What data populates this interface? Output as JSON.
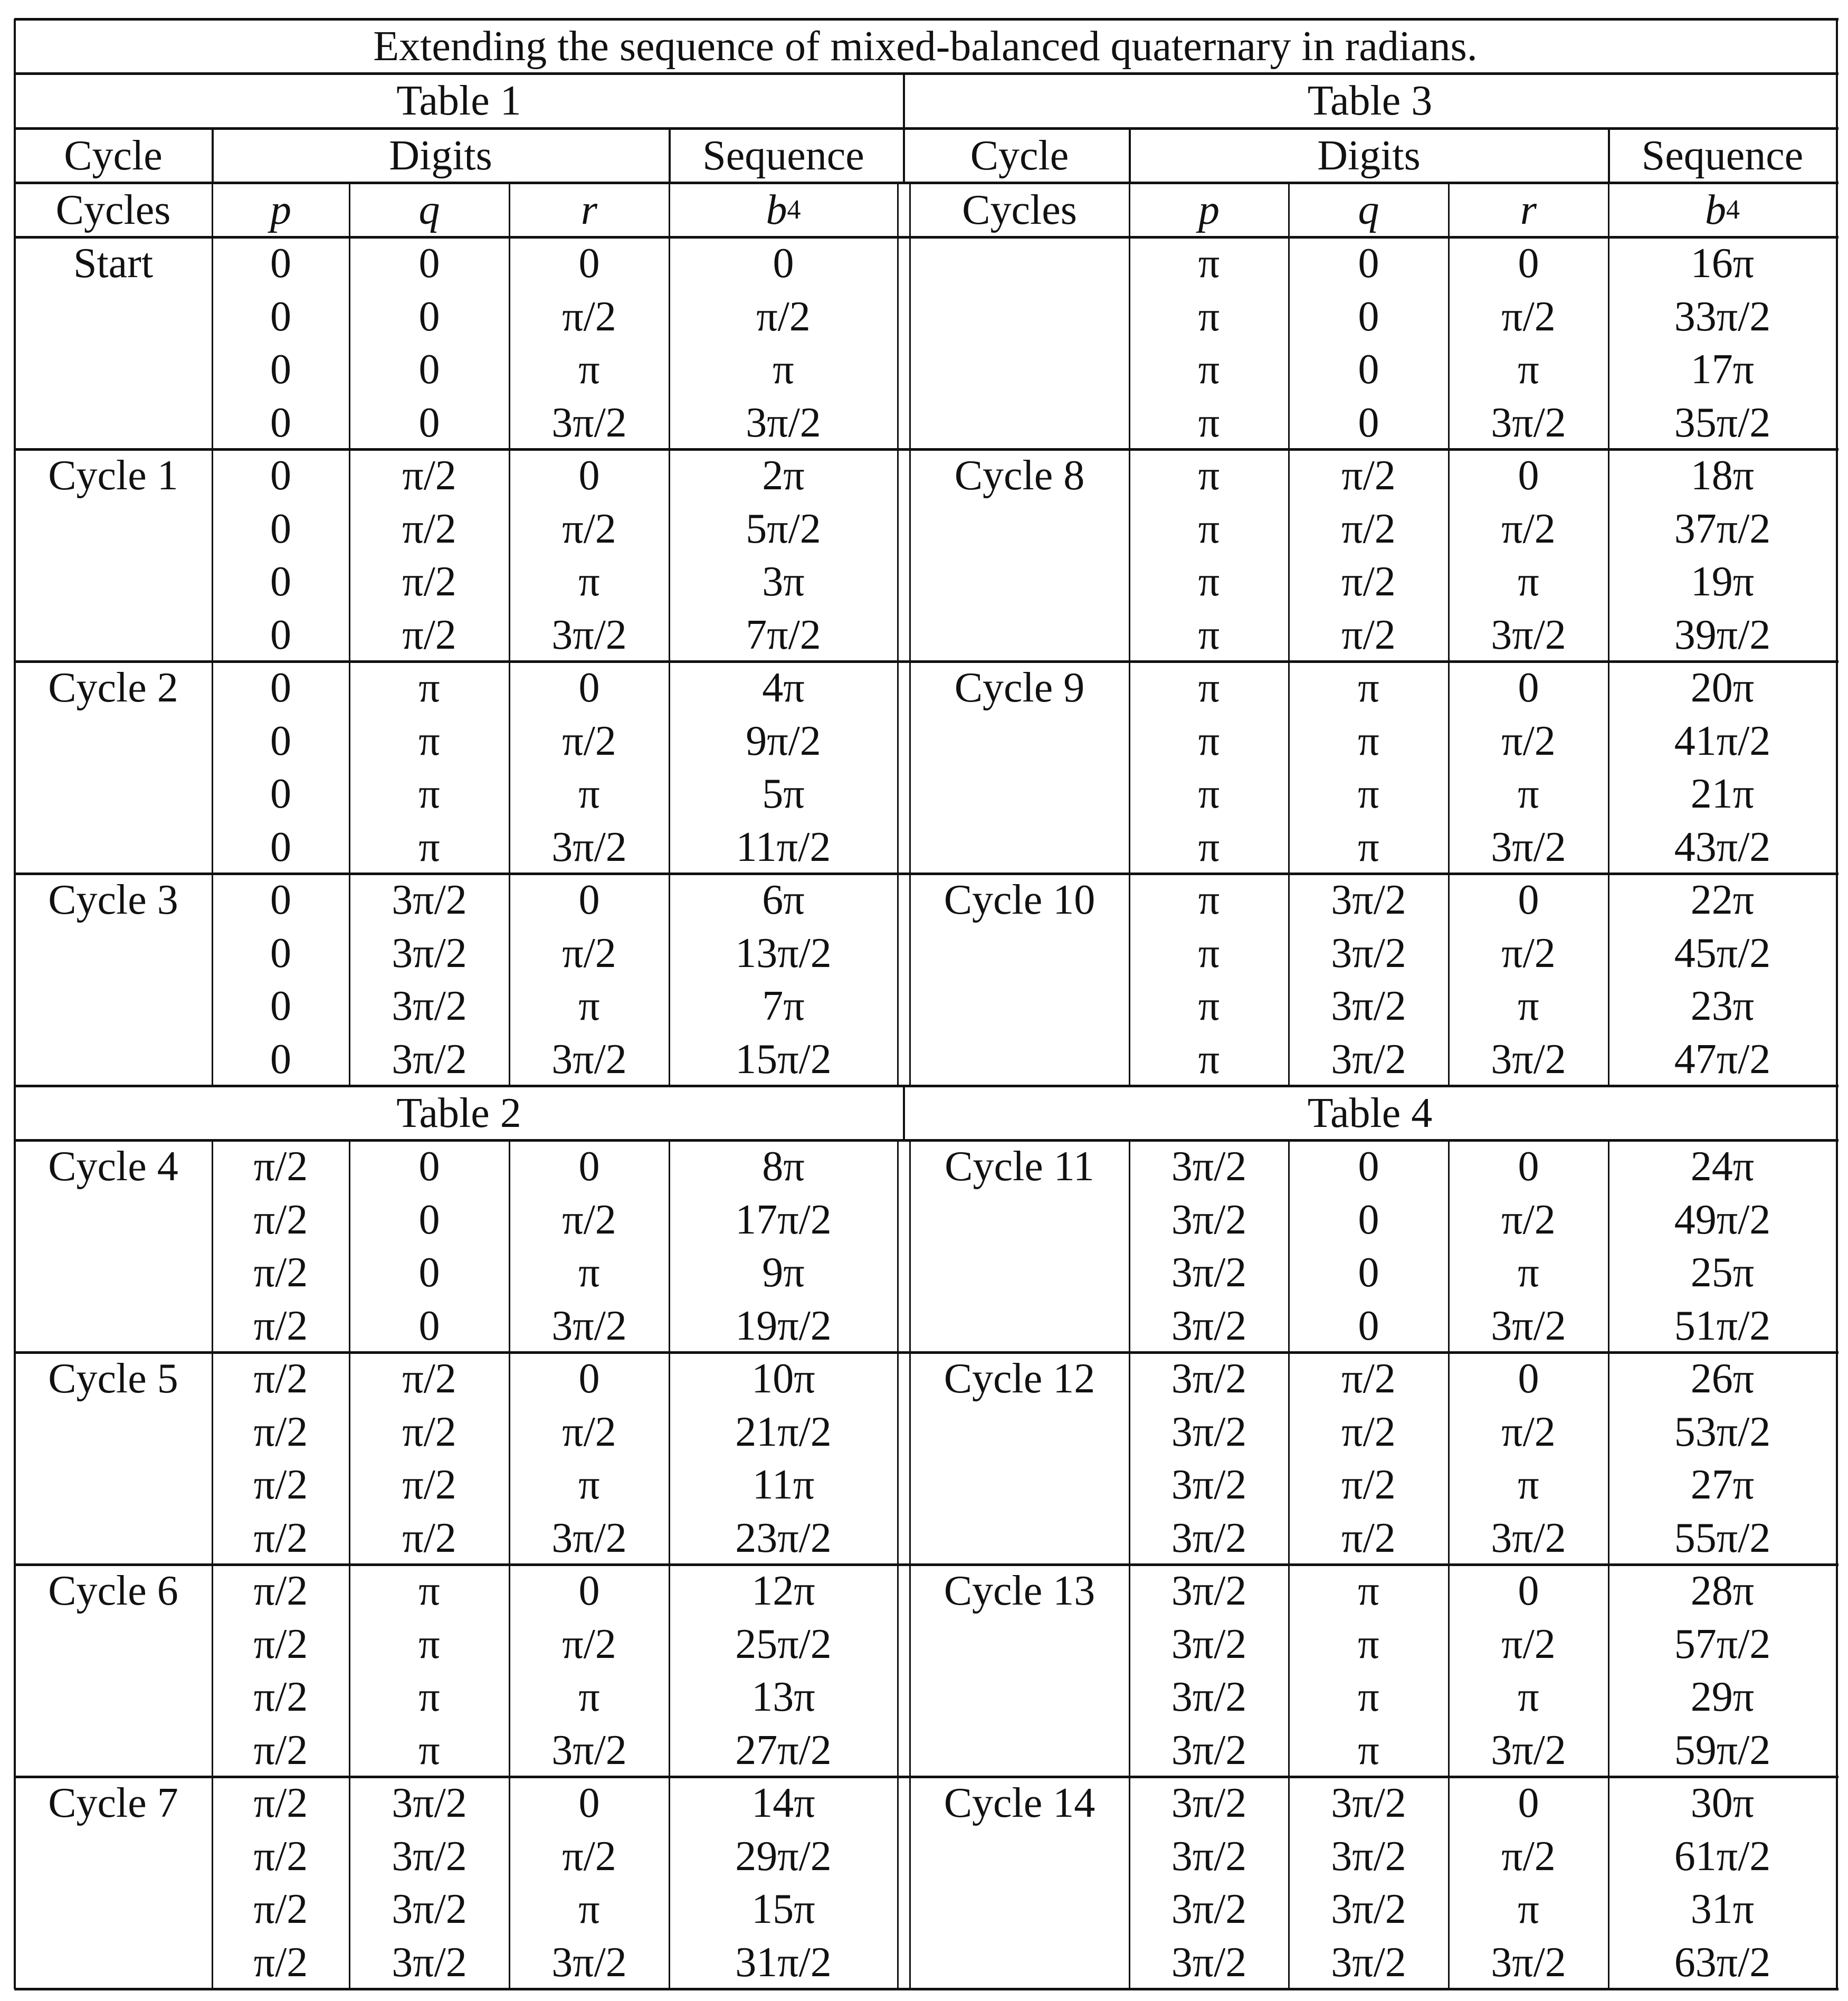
{
  "title": "Extending the sequence of mixed-balanced quaternary in radians.",
  "header_row1": {
    "cycle": "Cycle",
    "digits": "Digits",
    "sequence": "Sequence"
  },
  "header_row2": {
    "cycles": "Cycles",
    "p": "p",
    "q": "q",
    "r": "r",
    "b": "b",
    "b_sub": "4"
  },
  "left": [
    {
      "table_label": "Table 1",
      "groups": [
        {
          "label": "Start",
          "rows": [
            [
              "0",
              "0",
              "0",
              "0"
            ],
            [
              "0",
              "0",
              "π/2",
              "π/2"
            ],
            [
              "0",
              "0",
              "π",
              "π"
            ],
            [
              "0",
              "0",
              "3π/2",
              "3π/2"
            ]
          ]
        },
        {
          "label": "Cycle 1",
          "rows": [
            [
              "0",
              "π/2",
              "0",
              "2π"
            ],
            [
              "0",
              "π/2",
              "π/2",
              "5π/2"
            ],
            [
              "0",
              "π/2",
              "π",
              "3π"
            ],
            [
              "0",
              "π/2",
              "3π/2",
              "7π/2"
            ]
          ]
        },
        {
          "label": "Cycle 2",
          "rows": [
            [
              "0",
              "π",
              "0",
              "4π"
            ],
            [
              "0",
              "π",
              "π/2",
              "9π/2"
            ],
            [
              "0",
              "π",
              "π",
              "5π"
            ],
            [
              "0",
              "π",
              "3π/2",
              "11π/2"
            ]
          ]
        },
        {
          "label": "Cycle 3",
          "rows": [
            [
              "0",
              "3π/2",
              "0",
              "6π"
            ],
            [
              "0",
              "3π/2",
              "π/2",
              "13π/2"
            ],
            [
              "0",
              "3π/2",
              "π",
              "7π"
            ],
            [
              "0",
              "3π/2",
              "3π/2",
              "15π/2"
            ]
          ]
        }
      ]
    },
    {
      "table_label": "Table 2",
      "groups": [
        {
          "label": "Cycle 4",
          "rows": [
            [
              "π/2",
              "0",
              "0",
              "8π"
            ],
            [
              "π/2",
              "0",
              "π/2",
              "17π/2"
            ],
            [
              "π/2",
              "0",
              "π",
              "9π"
            ],
            [
              "π/2",
              "0",
              "3π/2",
              "19π/2"
            ]
          ]
        },
        {
          "label": "Cycle 5",
          "rows": [
            [
              "π/2",
              "π/2",
              "0",
              "10π"
            ],
            [
              "π/2",
              "π/2",
              "π/2",
              "21π/2"
            ],
            [
              "π/2",
              "π/2",
              "π",
              "11π"
            ],
            [
              "π/2",
              "π/2",
              "3π/2",
              "23π/2"
            ]
          ]
        },
        {
          "label": "Cycle 6",
          "rows": [
            [
              "π/2",
              "π",
              "0",
              "12π"
            ],
            [
              "π/2",
              "π",
              "π/2",
              "25π/2"
            ],
            [
              "π/2",
              "π",
              "π",
              "13π"
            ],
            [
              "π/2",
              "π",
              "3π/2",
              "27π/2"
            ]
          ]
        },
        {
          "label": "Cycle 7",
          "rows": [
            [
              "π/2",
              "3π/2",
              "0",
              "14π"
            ],
            [
              "π/2",
              "3π/2",
              "π/2",
              "29π/2"
            ],
            [
              "π/2",
              "3π/2",
              "π",
              "15π"
            ],
            [
              "π/2",
              "3π/2",
              "3π/2",
              "31π/2"
            ]
          ]
        }
      ]
    }
  ],
  "right": [
    {
      "table_label": "Table 3",
      "groups": [
        {
          "label": "",
          "rows": [
            [
              "π",
              "0",
              "0",
              "16π"
            ],
            [
              "π",
              "0",
              "π/2",
              "33π/2"
            ],
            [
              "π",
              "0",
              "π",
              "17π"
            ],
            [
              "π",
              "0",
              "3π/2",
              "35π/2"
            ]
          ]
        },
        {
          "label": "Cycle 8",
          "rows": [
            [
              "π",
              "π/2",
              "0",
              "18π"
            ],
            [
              "π",
              "π/2",
              "π/2",
              "37π/2"
            ],
            [
              "π",
              "π/2",
              "π",
              "19π"
            ],
            [
              "π",
              "π/2",
              "3π/2",
              "39π/2"
            ]
          ]
        },
        {
          "label": "Cycle 9",
          "rows": [
            [
              "π",
              "π",
              "0",
              "20π"
            ],
            [
              "π",
              "π",
              "π/2",
              "41π/2"
            ],
            [
              "π",
              "π",
              "π",
              "21π"
            ],
            [
              "π",
              "π",
              "3π/2",
              "43π/2"
            ]
          ]
        },
        {
          "label": "Cycle 10",
          "rows": [
            [
              "π",
              "3π/2",
              "0",
              "22π"
            ],
            [
              "π",
              "3π/2",
              "π/2",
              "45π/2"
            ],
            [
              "π",
              "3π/2",
              "π",
              "23π"
            ],
            [
              "π",
              "3π/2",
              "3π/2",
              "47π/2"
            ]
          ]
        }
      ]
    },
    {
      "table_label": "Table 4",
      "groups": [
        {
          "label": "Cycle 11",
          "rows": [
            [
              "3π/2",
              "0",
              "0",
              "24π"
            ],
            [
              "3π/2",
              "0",
              "π/2",
              "49π/2"
            ],
            [
              "3π/2",
              "0",
              "π",
              "25π"
            ],
            [
              "3π/2",
              "0",
              "3π/2",
              "51π/2"
            ]
          ]
        },
        {
          "label": "Cycle 12",
          "rows": [
            [
              "3π/2",
              "π/2",
              "0",
              "26π"
            ],
            [
              "3π/2",
              "π/2",
              "π/2",
              "53π/2"
            ],
            [
              "3π/2",
              "π/2",
              "π",
              "27π"
            ],
            [
              "3π/2",
              "π/2",
              "3π/2",
              "55π/2"
            ]
          ]
        },
        {
          "label": "Cycle 13",
          "rows": [
            [
              "3π/2",
              "π",
              "0",
              "28π"
            ],
            [
              "3π/2",
              "π",
              "π/2",
              "57π/2"
            ],
            [
              "3π/2",
              "π",
              "π",
              "29π"
            ],
            [
              "3π/2",
              "π",
              "3π/2",
              "59π/2"
            ]
          ]
        },
        {
          "label": "Cycle 14",
          "rows": [
            [
              "3π/2",
              "3π/2",
              "0",
              "30π"
            ],
            [
              "3π/2",
              "3π/2",
              "π/2",
              "61π/2"
            ],
            [
              "3π/2",
              "3π/2",
              "π",
              "31π"
            ],
            [
              "3π/2",
              "3π/2",
              "3π/2",
              "63π/2"
            ]
          ]
        }
      ]
    }
  ]
}
